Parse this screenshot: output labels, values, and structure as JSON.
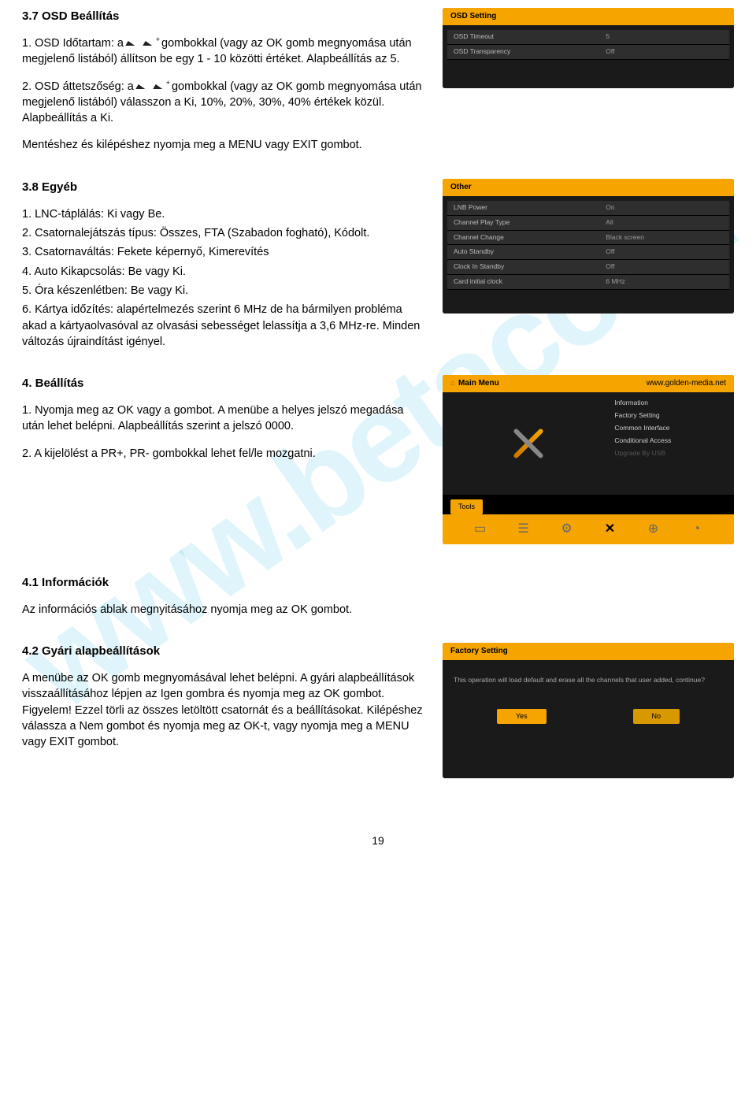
{
  "watermark": "www.betacom.",
  "sections": {
    "s37": {
      "title": "3.7 OSD Beállítás",
      "p1a": "1. OSD Időtartam: a ",
      "p1b": " gombokkal (vagy az OK gomb megnyomása után megjelenő listából) állítson be egy 1 - 10 közötti értéket. Alapbeállítás az 5.",
      "p2a": "2. OSD áttetszőség: a ",
      "p2b": " gombokkal (vagy az OK gomb megnyomása után megjelenő listából) válasszon a Ki, 10%, 20%, 30%, 40% értékek közül. Alapbeállítás a Ki.",
      "save": "Mentéshez és kilépéshez nyomja meg a MENU vagy EXIT gombot."
    },
    "s38": {
      "title": "3.8 Egyéb",
      "l1": "1. LNC-táplálás: Ki vagy Be.",
      "l2": "2. Csatornalejátszás típus: Összes, FTA (Szabadon fogható), Kódolt.",
      "l3": "3. Csatornaváltás: Fekete képernyő, Kimerevítés",
      "l4": "4. Auto Kikapcsolás: Be vagy Ki.",
      "l5": "5. Óra készenlétben: Be vagy Ki.",
      "l6": "6. Kártya időzítés: alapértelmezés szerint 6 MHz de ha bármilyen probléma akad a kártyaolvasóval az olvasási sebességet lelassítja a 3,6 MHz-re. Minden változás újraindítást igényel."
    },
    "s4": {
      "title": "4. Beállítás",
      "p1": "1. Nyomja meg az OK vagy a gombot. A menübe a helyes jelszó megadása után lehet belépni. Alapbeállítás szerint a jelszó 0000.",
      "p2": "2. A kijelölést a PR+, PR- gombokkal lehet fel/le mozgatni."
    },
    "s41": {
      "title": "4.1 Információk",
      "p1": "Az információs ablak megnyitásához nyomja meg az OK gombot."
    },
    "s42": {
      "title": "4.2 Gyári alapbeállítások",
      "p1": "A menübe az OK gomb megnyomásával lehet belépni. A gyári alapbeállítások visszaállításához lépjen az Igen gombra és nyomja meg az OK gombot. Figyelem! Ezzel törli az összes letöltött csatornát és a beállításokat. Kilépéshez válassza a Nem gombot és nyomja meg az OK-t, vagy nyomja meg a MENU vagy EXIT gombot."
    }
  },
  "shot1": {
    "header": "OSD Setting",
    "rows": [
      {
        "k": "OSD Timeout",
        "v": "5"
      },
      {
        "k": "OSD Transparency",
        "v": "Off"
      }
    ]
  },
  "shot2": {
    "header": "Other",
    "rows": [
      {
        "k": "LNB Power",
        "v": "On"
      },
      {
        "k": "Channel Play Type",
        "v": "All"
      },
      {
        "k": "Channel Change",
        "v": "Black screen"
      },
      {
        "k": "Auto Standby",
        "v": "Off"
      },
      {
        "k": "Clock In Standby",
        "v": "Off"
      },
      {
        "k": "Card initial clock",
        "v": "6 MHz"
      }
    ]
  },
  "shot3": {
    "mainmenu": "Main Menu",
    "url": "www.golden-media.net",
    "items": [
      "Information",
      "Factory Setting",
      "Common Interface",
      "Conditional Access",
      "Upgrade By USB"
    ],
    "tag": "Tools"
  },
  "shot4": {
    "header": "Factory Setting",
    "msg": "This operation will load default and erase all the channels that user added, continue?",
    "yes": "Yes",
    "no": "No"
  },
  "pagenum": "19"
}
